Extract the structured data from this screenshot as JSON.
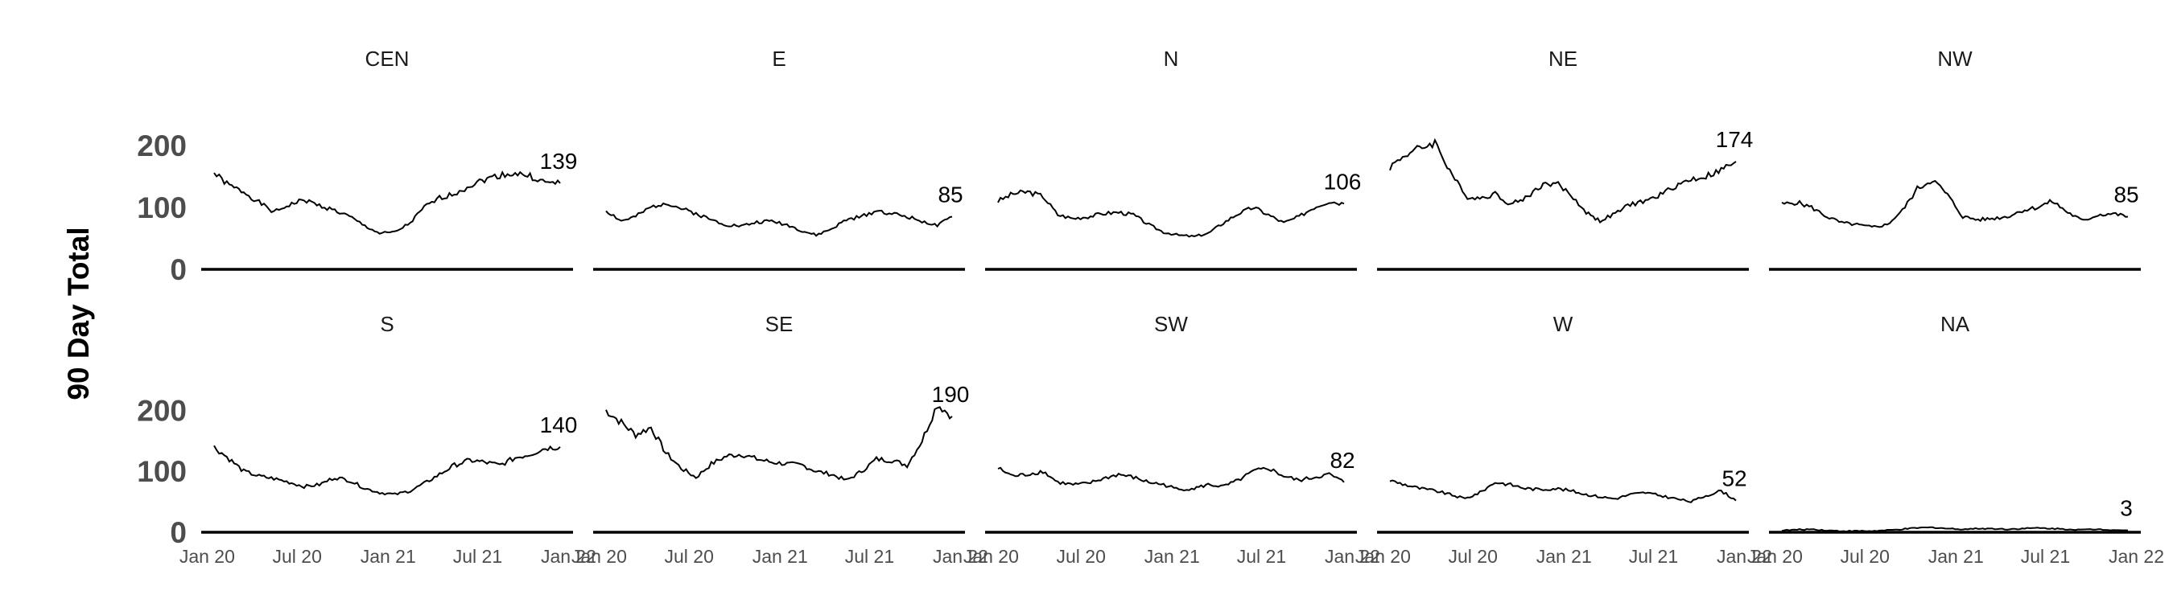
{
  "chart_data": {
    "type": "line",
    "title": "",
    "xlabel": "",
    "ylabel": "90 Day Total",
    "ylim": [
      0,
      240
    ],
    "yticks": [
      0,
      100,
      200
    ],
    "ytick_labels": [
      "0",
      "100",
      "200"
    ],
    "x_range": [
      "2019-12-20",
      "2022-01-10"
    ],
    "xticks": [
      "2020-01-01",
      "2020-07-01",
      "2021-01-01",
      "2021-07-01",
      "2022-01-01"
    ],
    "xtick_labels": [
      "Jan 20",
      "Jul 20",
      "Jan 21",
      "Jul 21",
      "Jan 22"
    ],
    "grid": false,
    "legend": "none",
    "colors": {
      "line": "#000000",
      "axis": "#000000",
      "text": "#4d4d4d"
    },
    "series_dates": [
      "2020-01",
      "2020-02",
      "2020-03",
      "2020-04",
      "2020-05",
      "2020-06",
      "2020-07",
      "2020-08",
      "2020-09",
      "2020-10",
      "2020-11",
      "2020-12",
      "2021-01",
      "2021-02",
      "2021-03",
      "2021-04",
      "2021-05",
      "2021-06",
      "2021-07",
      "2021-08",
      "2021-09",
      "2021-10",
      "2021-11",
      "2021-12"
    ],
    "facets": [
      {
        "name": "CEN",
        "end_label": "139",
        "values": [
          155,
          135,
          125,
          108,
          92,
          104,
          112,
          103,
          95,
          85,
          70,
          58,
          60,
          75,
          100,
          115,
          122,
          135,
          145,
          152,
          155,
          150,
          140,
          139
        ]
      },
      {
        "name": "E",
        "end_label": "85",
        "values": [
          95,
          78,
          85,
          100,
          108,
          98,
          90,
          80,
          72,
          70,
          76,
          78,
          72,
          62,
          55,
          65,
          80,
          85,
          95,
          90,
          85,
          78,
          70,
          85
        ]
      },
      {
        "name": "N",
        "end_label": "106",
        "values": [
          110,
          122,
          125,
          118,
          88,
          82,
          85,
          90,
          92,
          88,
          72,
          60,
          55,
          53,
          58,
          75,
          90,
          100,
          88,
          75,
          85,
          100,
          110,
          106
        ]
      },
      {
        "name": "NE",
        "end_label": "174",
        "values": [
          165,
          185,
          195,
          205,
          160,
          118,
          115,
          122,
          105,
          115,
          135,
          140,
          120,
          92,
          78,
          90,
          105,
          110,
          120,
          135,
          145,
          150,
          160,
          174
        ]
      },
      {
        "name": "NW",
        "end_label": "85",
        "values": [
          105,
          108,
          100,
          85,
          75,
          72,
          68,
          72,
          95,
          130,
          145,
          120,
          85,
          80,
          82,
          85,
          95,
          100,
          110,
          92,
          78,
          88,
          90,
          85
        ]
      },
      {
        "name": "S",
        "end_label": "140",
        "values": [
          140,
          120,
          100,
          92,
          88,
          82,
          75,
          78,
          90,
          85,
          72,
          65,
          62,
          68,
          80,
          95,
          110,
          118,
          115,
          110,
          122,
          128,
          138,
          140
        ]
      },
      {
        "name": "SE",
        "end_label": "190",
        "values": [
          200,
          180,
          160,
          172,
          130,
          105,
          90,
          112,
          125,
          128,
          120,
          115,
          112,
          110,
          100,
          95,
          85,
          100,
          120,
          118,
          110,
          150,
          210,
          190
        ]
      },
      {
        "name": "SW",
        "end_label": "82",
        "values": [
          105,
          92,
          95,
          100,
          82,
          78,
          80,
          88,
          95,
          90,
          82,
          78,
          70,
          72,
          78,
          75,
          85,
          100,
          105,
          92,
          85,
          90,
          95,
          82
        ]
      },
      {
        "name": "W",
        "end_label": "52",
        "values": [
          85,
          78,
          72,
          68,
          62,
          55,
          65,
          82,
          78,
          72,
          70,
          72,
          68,
          62,
          58,
          55,
          62,
          65,
          60,
          55,
          50,
          60,
          68,
          52
        ]
      },
      {
        "name": "NA",
        "end_label": "3",
        "values": [
          3,
          4,
          5,
          3,
          2,
          2,
          2,
          3,
          5,
          7,
          8,
          6,
          5,
          6,
          6,
          5,
          6,
          7,
          6,
          5,
          4,
          5,
          4,
          3
        ]
      }
    ]
  }
}
